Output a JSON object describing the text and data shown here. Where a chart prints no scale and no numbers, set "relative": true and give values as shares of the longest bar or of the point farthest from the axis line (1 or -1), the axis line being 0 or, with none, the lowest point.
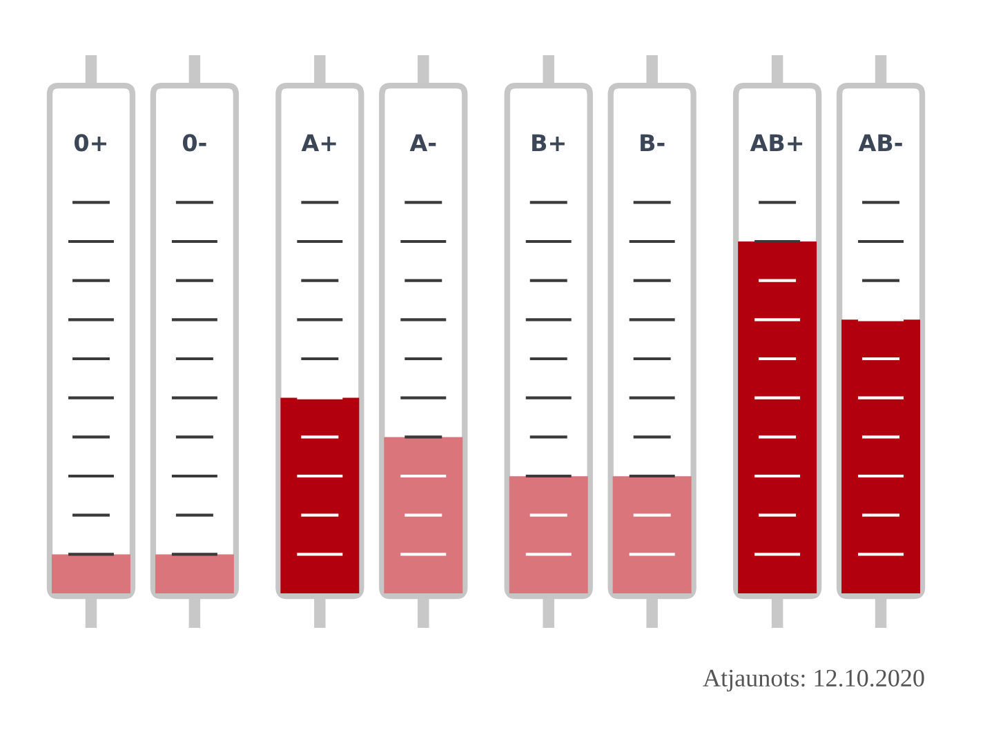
{
  "chart_data": {
    "type": "bar",
    "relative": true,
    "categories": [
      "0+",
      "0-",
      "A+",
      "A-",
      "B+",
      "B-",
      "AB+",
      "AB-"
    ],
    "values": [
      0.111,
      0.111,
      0.556,
      0.444,
      0.333,
      0.333,
      1,
      0.778
    ],
    "colors": [
      "#d9757b",
      "#d9757b",
      "#b3000f",
      "#d9757b",
      "#d9757b",
      "#d9757b",
      "#b3000f",
      "#b3000f"
    ],
    "annotations": [
      "Atjaunots: 12.10.2020"
    ]
  }
}
